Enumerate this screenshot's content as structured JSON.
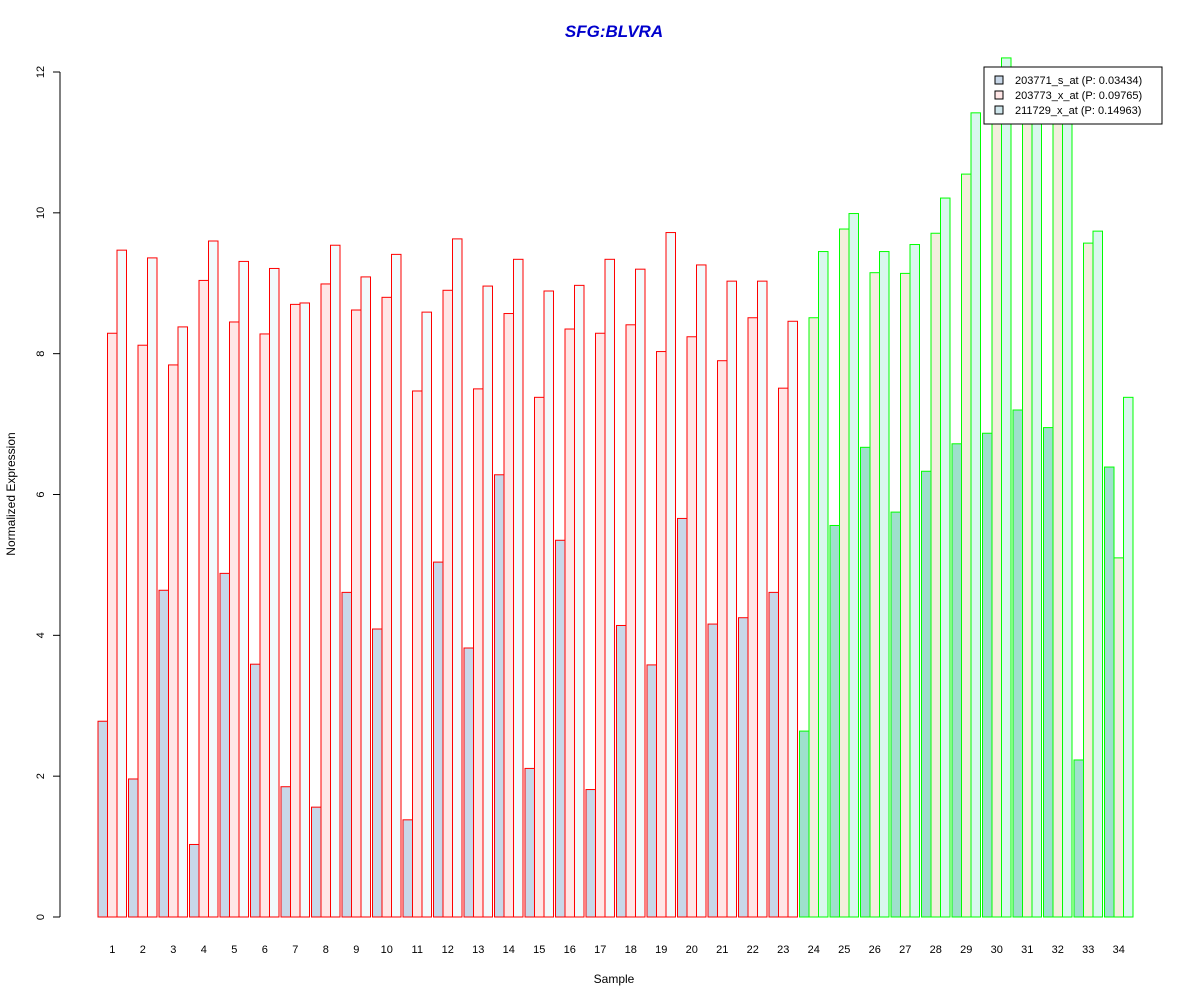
{
  "chart_data": {
    "type": "bar",
    "title": "SFG:BLVRA",
    "xlabel": "Sample",
    "ylabel": "Normalized Expression",
    "ylim": [
      0,
      12
    ],
    "yticks": [
      0,
      2,
      4,
      6,
      8,
      10,
      12
    ],
    "grid": false,
    "legend_position": "top-right",
    "categories": [
      "1",
      "2",
      "3",
      "4",
      "5",
      "6",
      "7",
      "8",
      "9",
      "10",
      "11",
      "12",
      "13",
      "14",
      "15",
      "16",
      "17",
      "18",
      "19",
      "20",
      "21",
      "22",
      "23",
      "24",
      "25",
      "26",
      "27",
      "28",
      "29",
      "30",
      "31",
      "32",
      "33",
      "34"
    ],
    "group_a_count": 23,
    "colors": {
      "group_a_border": "#ff0000",
      "group_b_border": "#00ff00",
      "title": "#0000cc",
      "series_fill_a": [
        "#c8d7e8",
        "#ffe6e6",
        "#f2fafc"
      ],
      "series_fill_b": [
        "#9ee0cc",
        "#f3eedd",
        "#d9f7ee"
      ]
    },
    "series": [
      {
        "name": "203771_s_at (P: 0.03434)",
        "values": [
          2.78,
          1.96,
          4.64,
          1.03,
          4.88,
          3.59,
          1.85,
          1.56,
          4.61,
          4.09,
          1.38,
          5.04,
          3.82,
          6.28,
          2.11,
          5.35,
          1.81,
          4.14,
          3.58,
          5.66,
          4.16,
          4.25,
          4.61,
          2.64,
          5.56,
          6.67,
          5.75,
          6.33,
          6.72,
          6.87,
          7.2,
          6.95,
          2.23,
          6.39
        ]
      },
      {
        "name": "203773_x_at (P: 0.09765)",
        "values": [
          8.29,
          8.12,
          7.84,
          9.04,
          8.45,
          8.28,
          8.7,
          8.99,
          8.62,
          8.8,
          7.47,
          8.9,
          7.5,
          8.57,
          7.38,
          8.35,
          8.29,
          8.41,
          8.03,
          8.24,
          7.9,
          8.51,
          7.51,
          8.51,
          9.77,
          9.15,
          9.14,
          9.71,
          10.55,
          12.0,
          11.5,
          11.5,
          9.57,
          5.1
        ]
      },
      {
        "name": "211729_x_at (P: 0.14963)",
        "values": [
          9.47,
          9.36,
          8.38,
          9.6,
          9.31,
          9.21,
          8.72,
          9.54,
          9.09,
          9.41,
          8.59,
          9.63,
          8.96,
          9.34,
          8.89,
          8.97,
          9.34,
          9.2,
          9.72,
          9.26,
          9.03,
          9.03,
          8.46,
          9.45,
          9.99,
          9.45,
          9.55,
          10.21,
          11.42,
          12.2,
          11.7,
          11.7,
          9.74,
          7.38
        ]
      }
    ]
  }
}
